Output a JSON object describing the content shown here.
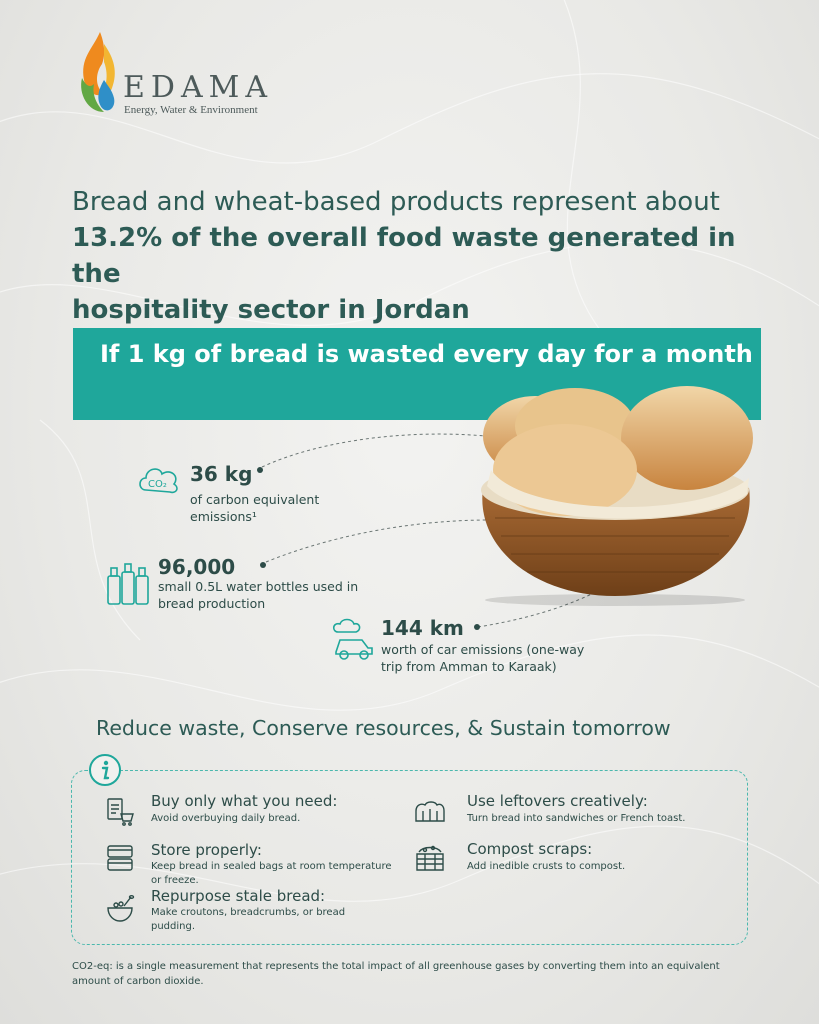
{
  "brand": {
    "name": "EDAMA",
    "tagline": "Energy, Water & Environment"
  },
  "headline": {
    "line1": "Bread and wheat-based products represent about",
    "line2": "13.2% of the overall food waste generated in the",
    "line3": "hospitality sector in Jordan"
  },
  "banner": {
    "text": "If 1 kg of bread is wasted every day for a month"
  },
  "stats": [
    {
      "value": "36 kg",
      "line1": "of carbon equivalent",
      "line2": "emissions¹",
      "icon": "co2-cloud-icon"
    },
    {
      "value": "96,000",
      "line1": "small 0.5L water bottles used in",
      "line2": "bread production",
      "icon": "water-bottles-icon"
    },
    {
      "value": "144 km",
      "line1": "worth of car emissions (one-way",
      "line2": "trip from Amman to Karaak)",
      "icon": "car-emissions-icon"
    }
  ],
  "section_title": "Reduce waste, Conserve resources, & Sustain tomorrow",
  "tips": [
    {
      "title": "Buy only what you need:",
      "line1": "Avoid overbuying daily bread.",
      "line2": "",
      "icon": "shopping-list-icon"
    },
    {
      "title": "Store properly:",
      "line1": "Keep bread in sealed bags at room temperature",
      "line2": "or freeze.",
      "icon": "storage-containers-icon"
    },
    {
      "title": "Repurpose stale bread:",
      "line1": "Make croutons, breadcrumbs, or bread",
      "line2": "pudding.",
      "icon": "bowl-icon"
    },
    {
      "title": "Use leftovers creatively:",
      "line1": "Turn bread into sandwiches or French toast.",
      "line2": "",
      "icon": "bread-loaf-icon"
    },
    {
      "title": "Compost scraps:",
      "line1": "Add inedible crusts to compost.",
      "line2": "",
      "icon": "compost-bin-icon"
    }
  ],
  "footnote": {
    "line1": "CO2-eq: is a single measurement that represents the total impact of all greenhouse gases by converting them into an equivalent",
    "line2": "amount of carbon dioxide."
  },
  "colors": {
    "teal": "#1fa79b",
    "dark_green": "#2d5b55",
    "text": "#2d4c48"
  }
}
